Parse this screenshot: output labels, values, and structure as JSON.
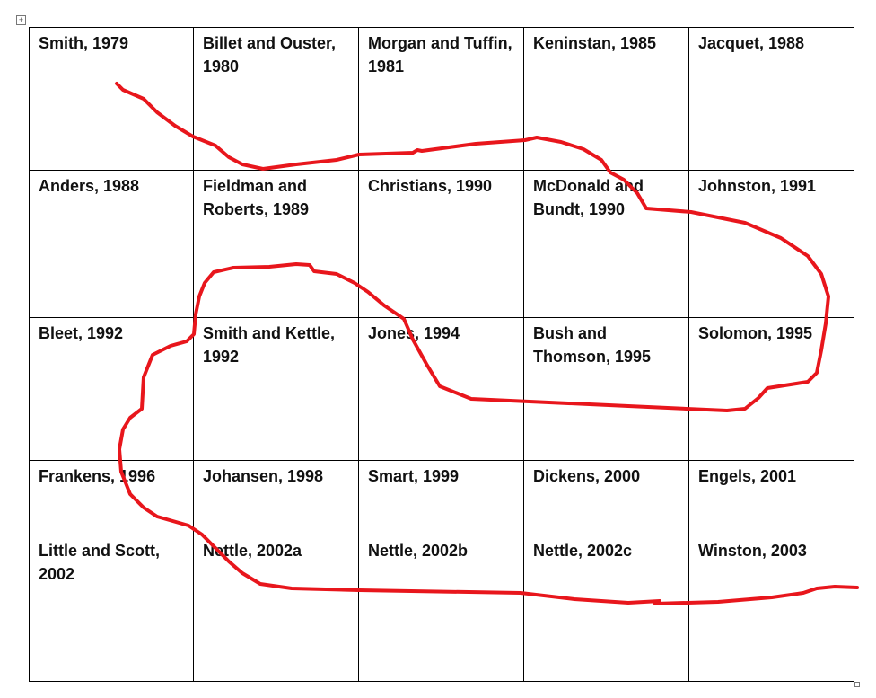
{
  "table": {
    "rows": [
      [
        "Smith, 1979",
        "Billet and Ouster, 1980",
        "Morgan and Tuffin, 1981",
        "Keninstan, 1985",
        "Jacquet, 1988"
      ],
      [
        "Anders, 1988",
        "Fieldman and Roberts,  1989",
        "Christians, 1990",
        "McDonald and Bundt, 1990",
        "Johnston, 1991"
      ],
      [
        "Bleet, 1992",
        "Smith and Kettle, 1992",
        "Jones, 1994",
        "Bush and Thomson, 1995",
        "Solomon, 1995"
      ],
      [
        "Frankens, 1996",
        "Johansen, 1998",
        "Smart, 1999",
        "Dickens, 2000",
        "Engels, 2001"
      ],
      [
        "Little and Scott, 2002",
        "Nettle, 2002a",
        "Nettle, 2002b",
        "Nettle, 2002c",
        "Winston, 2003"
      ]
    ]
  }
}
